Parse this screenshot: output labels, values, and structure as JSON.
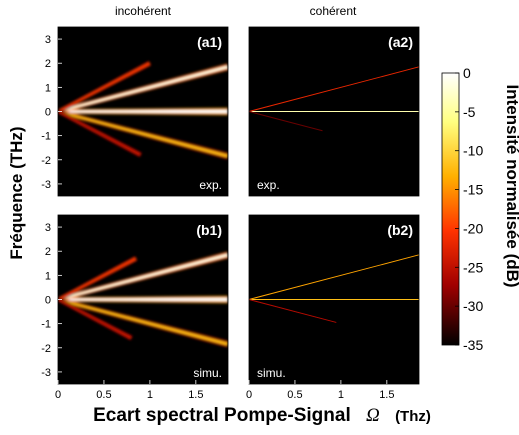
{
  "chart_data": {
    "type": "heatmap",
    "xlabel": "Ecart spectral Pompe-Signal",
    "xlabel_symbol": "Ω",
    "xlabel_unit": "(Thz)",
    "ylabel": "Fréquence (THz)",
    "xlim": [
      0,
      1.85
    ],
    "ylim": [
      -3.5,
      3.5
    ],
    "xticks": [
      "0",
      "0.5",
      "1",
      "1.5"
    ],
    "yticks": [
      "3",
      "2",
      "1",
      "0",
      "-1",
      "-2",
      "-3"
    ],
    "column_titles": [
      "incohérent",
      "cohérent"
    ],
    "colorbar": {
      "label": "Intensité normalisée (dB)",
      "ticks": [
        "0",
        "-5",
        "-10",
        "-15",
        "-20",
        "-25",
        "-30",
        "-35"
      ],
      "range": [
        -35,
        0
      ],
      "colormap": "hot"
    },
    "panels": [
      {
        "id": "a1",
        "tag": "(a1)",
        "note": "exp.",
        "regime": "incoherent",
        "lines": [
          {
            "slope": 0,
            "width": 0.09,
            "level_db": 0
          },
          {
            "slope": 1.0,
            "width": 0.07,
            "level_db": -3
          },
          {
            "slope": -1.0,
            "width": 0.07,
            "level_db": -12
          },
          {
            "slope": 2.0,
            "width": 0.06,
            "level_db": -20,
            "x_end": 1.0
          },
          {
            "slope": -2.0,
            "width": 0.06,
            "level_db": -24,
            "x_end": 0.9
          }
        ]
      },
      {
        "id": "a2",
        "tag": "(a2)",
        "note": "exp.",
        "regime": "coherent",
        "lines": [
          {
            "slope": 0,
            "width": 0.018,
            "level_db": -4
          },
          {
            "slope": 1.0,
            "width": 0.012,
            "level_db": -22
          },
          {
            "slope": -1.0,
            "width": 0.012,
            "level_db": -30,
            "x_end": 0.8
          }
        ]
      },
      {
        "id": "b1",
        "tag": "(b1)",
        "note": "simu.",
        "regime": "incoherent",
        "lines": [
          {
            "slope": 0,
            "width": 0.09,
            "level_db": 0
          },
          {
            "slope": 1.0,
            "width": 0.07,
            "level_db": -3
          },
          {
            "slope": -1.0,
            "width": 0.07,
            "level_db": -12
          },
          {
            "slope": 2.0,
            "width": 0.06,
            "level_db": -20,
            "x_end": 0.85
          },
          {
            "slope": -2.0,
            "width": 0.06,
            "level_db": -24,
            "x_end": 0.8
          }
        ]
      },
      {
        "id": "b2",
        "tag": "(b2)",
        "note": "simu.",
        "regime": "coherent",
        "lines": [
          {
            "slope": 0,
            "width": 0.015,
            "level_db": -12
          },
          {
            "slope": 1.0,
            "width": 0.012,
            "level_db": -14
          },
          {
            "slope": -1.0,
            "width": 0.012,
            "level_db": -26,
            "x_end": 0.95
          }
        ]
      }
    ]
  }
}
